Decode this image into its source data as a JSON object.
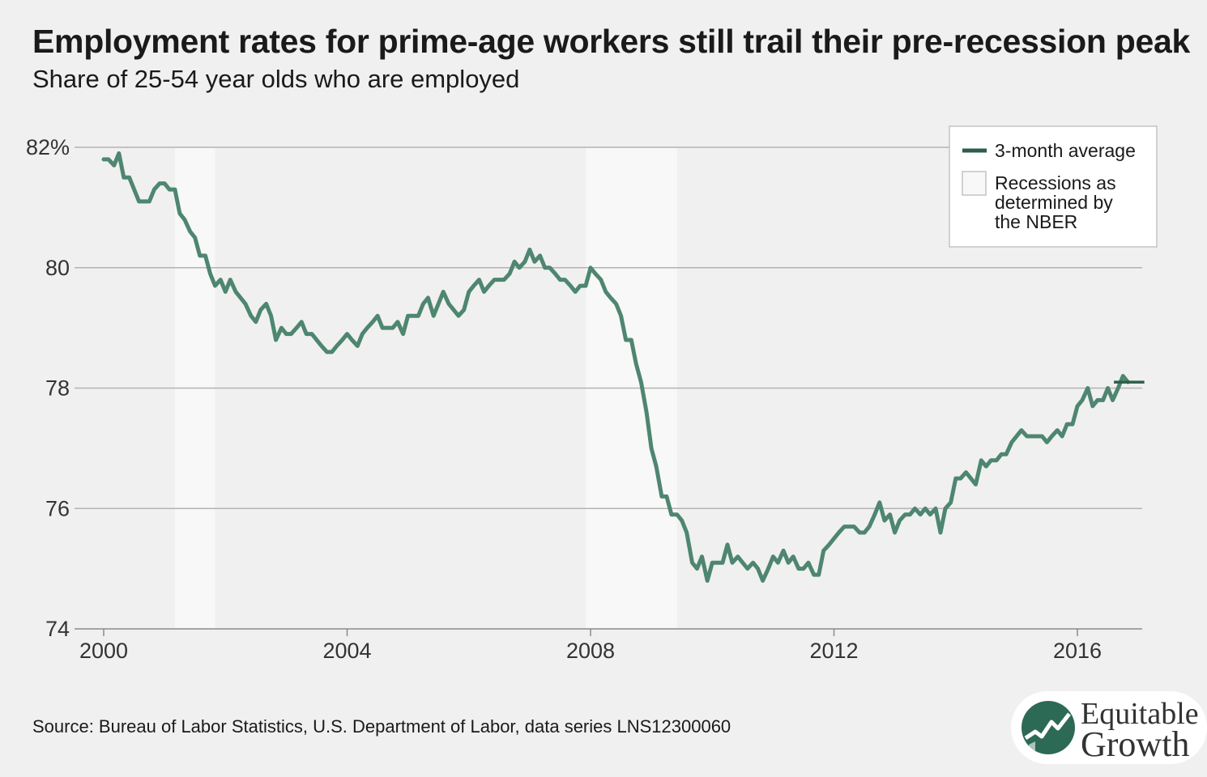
{
  "header": {
    "title": "Employment rates for prime-age workers still trail their pre-recession peak",
    "subtitle": "Share of 25-54 year olds who are employed"
  },
  "footer": {
    "source": "Source: Bureau of Labor Statistics, U.S. Department of Labor, data series LNS12300060"
  },
  "logo": {
    "line1": "Equitable",
    "line2": "Growth",
    "colors": {
      "circle": "#2d6a55",
      "background": "#ffffff"
    }
  },
  "colors": {
    "line": "#4e8670",
    "legend_line": "#2d5e4a",
    "recession": "#f8f8f8",
    "grid": "#b3b3b3",
    "background": "#f0f0f0"
  },
  "chart_data": {
    "type": "line",
    "title": "Employment rates for prime-age workers still trail their pre-recession peak",
    "subtitle": "Share of 25-54 year olds who are employed",
    "xlabel": "",
    "ylabel": "",
    "x_ticks": [
      2000,
      2004,
      2008,
      2012,
      2016
    ],
    "y_ticks": [
      {
        "value": 74,
        "label": "74"
      },
      {
        "value": 76,
        "label": "76"
      },
      {
        "value": 78,
        "label": "78"
      },
      {
        "value": 80,
        "label": "80"
      },
      {
        "value": 82,
        "label": "82%"
      }
    ],
    "xlim": [
      2000,
      2017
    ],
    "ylim": [
      74,
      82
    ],
    "grid": "horizontal",
    "legend_position": "top-right",
    "legend": [
      {
        "label": "3-month average",
        "kind": "line"
      },
      {
        "label": "Recessions as determined by the NBER",
        "kind": "box",
        "lines": [
          "Recessions as",
          "determined by",
          "the NBER"
        ]
      }
    ],
    "recessions": [
      {
        "start": 2001.17,
        "end": 2001.83
      },
      {
        "start": 2007.92,
        "end": 2009.42
      }
    ],
    "annotations": [
      {
        "type": "reference-line",
        "y": 78.1,
        "x_start": 2016.6,
        "x_end": 2017.1
      }
    ],
    "series": [
      {
        "name": "3-month average",
        "points": [
          [
            2000.0,
            81.8
          ],
          [
            2000.08,
            81.8
          ],
          [
            2000.17,
            81.7
          ],
          [
            2000.25,
            81.9
          ],
          [
            2000.33,
            81.5
          ],
          [
            2000.42,
            81.5
          ],
          [
            2000.5,
            81.3
          ],
          [
            2000.58,
            81.1
          ],
          [
            2000.67,
            81.1
          ],
          [
            2000.75,
            81.1
          ],
          [
            2000.83,
            81.3
          ],
          [
            2000.92,
            81.4
          ],
          [
            2001.0,
            81.4
          ],
          [
            2001.08,
            81.3
          ],
          [
            2001.17,
            81.3
          ],
          [
            2001.25,
            80.9
          ],
          [
            2001.33,
            80.8
          ],
          [
            2001.42,
            80.6
          ],
          [
            2001.5,
            80.5
          ],
          [
            2001.58,
            80.2
          ],
          [
            2001.67,
            80.2
          ],
          [
            2001.75,
            79.9
          ],
          [
            2001.83,
            79.7
          ],
          [
            2001.92,
            79.8
          ],
          [
            2002.0,
            79.6
          ],
          [
            2002.08,
            79.8
          ],
          [
            2002.17,
            79.6
          ],
          [
            2002.25,
            79.5
          ],
          [
            2002.33,
            79.4
          ],
          [
            2002.42,
            79.2
          ],
          [
            2002.5,
            79.1
          ],
          [
            2002.58,
            79.3
          ],
          [
            2002.67,
            79.4
          ],
          [
            2002.75,
            79.2
          ],
          [
            2002.83,
            78.8
          ],
          [
            2002.92,
            79.0
          ],
          [
            2003.0,
            78.9
          ],
          [
            2003.08,
            78.9
          ],
          [
            2003.17,
            79.0
          ],
          [
            2003.25,
            79.1
          ],
          [
            2003.33,
            78.9
          ],
          [
            2003.42,
            78.9
          ],
          [
            2003.5,
            78.8
          ],
          [
            2003.58,
            78.7
          ],
          [
            2003.67,
            78.6
          ],
          [
            2003.75,
            78.6
          ],
          [
            2003.83,
            78.7
          ],
          [
            2003.92,
            78.8
          ],
          [
            2004.0,
            78.9
          ],
          [
            2004.08,
            78.8
          ],
          [
            2004.17,
            78.7
          ],
          [
            2004.25,
            78.9
          ],
          [
            2004.33,
            79.0
          ],
          [
            2004.42,
            79.1
          ],
          [
            2004.5,
            79.2
          ],
          [
            2004.58,
            79.0
          ],
          [
            2004.67,
            79.0
          ],
          [
            2004.75,
            79.0
          ],
          [
            2004.83,
            79.1
          ],
          [
            2004.92,
            78.9
          ],
          [
            2005.0,
            79.2
          ],
          [
            2005.08,
            79.2
          ],
          [
            2005.17,
            79.2
          ],
          [
            2005.25,
            79.4
          ],
          [
            2005.33,
            79.5
          ],
          [
            2005.42,
            79.2
          ],
          [
            2005.5,
            79.4
          ],
          [
            2005.58,
            79.6
          ],
          [
            2005.67,
            79.4
          ],
          [
            2005.75,
            79.3
          ],
          [
            2005.83,
            79.2
          ],
          [
            2005.92,
            79.3
          ],
          [
            2006.0,
            79.6
          ],
          [
            2006.08,
            79.7
          ],
          [
            2006.17,
            79.8
          ],
          [
            2006.25,
            79.6
          ],
          [
            2006.33,
            79.7
          ],
          [
            2006.42,
            79.8
          ],
          [
            2006.5,
            79.8
          ],
          [
            2006.58,
            79.8
          ],
          [
            2006.67,
            79.9
          ],
          [
            2006.75,
            80.1
          ],
          [
            2006.83,
            80.0
          ],
          [
            2006.92,
            80.1
          ],
          [
            2007.0,
            80.3
          ],
          [
            2007.08,
            80.1
          ],
          [
            2007.17,
            80.2
          ],
          [
            2007.25,
            80.0
          ],
          [
            2007.33,
            80.0
          ],
          [
            2007.42,
            79.9
          ],
          [
            2007.5,
            79.8
          ],
          [
            2007.58,
            79.8
          ],
          [
            2007.67,
            79.7
          ],
          [
            2007.75,
            79.6
          ],
          [
            2007.83,
            79.7
          ],
          [
            2007.92,
            79.7
          ],
          [
            2008.0,
            80.0
          ],
          [
            2008.08,
            79.9
          ],
          [
            2008.17,
            79.8
          ],
          [
            2008.25,
            79.6
          ],
          [
            2008.33,
            79.5
          ],
          [
            2008.42,
            79.4
          ],
          [
            2008.5,
            79.2
          ],
          [
            2008.58,
            78.8
          ],
          [
            2008.67,
            78.8
          ],
          [
            2008.75,
            78.4
          ],
          [
            2008.83,
            78.1
          ],
          [
            2008.92,
            77.6
          ],
          [
            2009.0,
            77.0
          ],
          [
            2009.08,
            76.7
          ],
          [
            2009.17,
            76.2
          ],
          [
            2009.25,
            76.2
          ],
          [
            2009.33,
            75.9
          ],
          [
            2009.42,
            75.9
          ],
          [
            2009.5,
            75.8
          ],
          [
            2009.58,
            75.6
          ],
          [
            2009.67,
            75.1
          ],
          [
            2009.75,
            75.0
          ],
          [
            2009.83,
            75.2
          ],
          [
            2009.92,
            74.8
          ],
          [
            2010.0,
            75.1
          ],
          [
            2010.08,
            75.1
          ],
          [
            2010.17,
            75.1
          ],
          [
            2010.25,
            75.4
          ],
          [
            2010.33,
            75.1
          ],
          [
            2010.42,
            75.2
          ],
          [
            2010.5,
            75.1
          ],
          [
            2010.58,
            75.0
          ],
          [
            2010.67,
            75.1
          ],
          [
            2010.75,
            75.0
          ],
          [
            2010.83,
            74.8
          ],
          [
            2010.92,
            75.0
          ],
          [
            2011.0,
            75.2
          ],
          [
            2011.08,
            75.1
          ],
          [
            2011.17,
            75.3
          ],
          [
            2011.25,
            75.1
          ],
          [
            2011.33,
            75.2
          ],
          [
            2011.42,
            75.0
          ],
          [
            2011.5,
            75.0
          ],
          [
            2011.58,
            75.1
          ],
          [
            2011.67,
            74.9
          ],
          [
            2011.75,
            74.9
          ],
          [
            2011.83,
            75.3
          ],
          [
            2011.92,
            75.4
          ],
          [
            2012.0,
            75.5
          ],
          [
            2012.08,
            75.6
          ],
          [
            2012.17,
            75.7
          ],
          [
            2012.25,
            75.7
          ],
          [
            2012.33,
            75.7
          ],
          [
            2012.42,
            75.6
          ],
          [
            2012.5,
            75.6
          ],
          [
            2012.58,
            75.7
          ],
          [
            2012.67,
            75.9
          ],
          [
            2012.75,
            76.1
          ],
          [
            2012.83,
            75.8
          ],
          [
            2012.92,
            75.9
          ],
          [
            2013.0,
            75.6
          ],
          [
            2013.08,
            75.8
          ],
          [
            2013.17,
            75.9
          ],
          [
            2013.25,
            75.9
          ],
          [
            2013.33,
            76.0
          ],
          [
            2013.42,
            75.9
          ],
          [
            2013.5,
            76.0
          ],
          [
            2013.58,
            75.9
          ],
          [
            2013.67,
            76.0
          ],
          [
            2013.75,
            75.6
          ],
          [
            2013.83,
            76.0
          ],
          [
            2013.92,
            76.1
          ],
          [
            2014.0,
            76.5
          ],
          [
            2014.08,
            76.5
          ],
          [
            2014.17,
            76.6
          ],
          [
            2014.25,
            76.5
          ],
          [
            2014.33,
            76.4
          ],
          [
            2014.42,
            76.8
          ],
          [
            2014.5,
            76.7
          ],
          [
            2014.58,
            76.8
          ],
          [
            2014.67,
            76.8
          ],
          [
            2014.75,
            76.9
          ],
          [
            2014.83,
            76.9
          ],
          [
            2014.92,
            77.1
          ],
          [
            2015.0,
            77.2
          ],
          [
            2015.08,
            77.3
          ],
          [
            2015.17,
            77.2
          ],
          [
            2015.25,
            77.2
          ],
          [
            2015.33,
            77.2
          ],
          [
            2015.42,
            77.2
          ],
          [
            2015.5,
            77.1
          ],
          [
            2015.58,
            77.2
          ],
          [
            2015.67,
            77.3
          ],
          [
            2015.75,
            77.2
          ],
          [
            2015.83,
            77.4
          ],
          [
            2015.92,
            77.4
          ],
          [
            2016.0,
            77.7
          ],
          [
            2016.08,
            77.8
          ],
          [
            2016.17,
            78.0
          ],
          [
            2016.25,
            77.7
          ],
          [
            2016.33,
            77.8
          ],
          [
            2016.42,
            77.8
          ],
          [
            2016.5,
            78.0
          ],
          [
            2016.58,
            77.8
          ],
          [
            2016.67,
            78.0
          ],
          [
            2016.75,
            78.2
          ],
          [
            2016.83,
            78.1
          ]
        ]
      }
    ]
  }
}
